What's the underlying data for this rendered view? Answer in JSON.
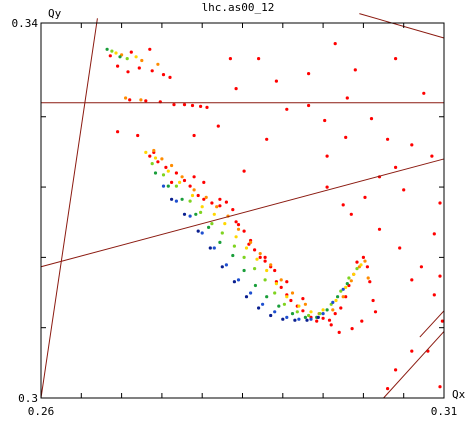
{
  "chart_data": {
    "type": "scatter",
    "title": "lhc.as00_12",
    "xlabel": "Qx",
    "ylabel": "Qy",
    "xlim": [
      0.26,
      0.31
    ],
    "ylim": [
      0.3,
      0.34
    ],
    "x_tick_labels": [
      {
        "value": 0.26,
        "label": "0.26"
      },
      {
        "value": 0.31,
        "label": "0.31"
      }
    ],
    "y_tick_labels": [
      {
        "value": 0.3,
        "label": "0.3"
      },
      {
        "value": 0.34,
        "label": "0.34"
      }
    ],
    "x_minor_ticks": [
      0.265,
      0.27,
      0.275,
      0.28,
      0.285,
      0.29,
      0.295,
      0.3,
      0.305
    ],
    "y_minor_ticks": [
      0.3075,
      0.315,
      0.3225,
      0.33
    ],
    "resonance_lines": [
      {
        "x": [
          0.26,
          0.267
        ],
        "y": [
          0.3,
          0.3405
        ]
      },
      {
        "x": [
          0.26,
          0.31
        ],
        "y": [
          0.3315,
          0.3315
        ]
      },
      {
        "x": [
          0.26,
          0.31
        ],
        "y": [
          0.314,
          0.3255
        ]
      },
      {
        "x": [
          0.2995,
          0.31
        ],
        "y": [
          0.341,
          0.3384
        ]
      },
      {
        "x": [
          0.3025,
          0.31
        ],
        "y": [
          0.3,
          0.3071
        ]
      },
      {
        "x": [
          0.307,
          0.31
        ],
        "y": [
          0.3065,
          0.3093
        ]
      }
    ],
    "point_groups": [
      {
        "color": "#ff0000",
        "points": [
          [
            0.2686,
            0.3365
          ],
          [
            0.2712,
            0.3369
          ],
          [
            0.2735,
            0.3372
          ],
          [
            0.2695,
            0.3354
          ],
          [
            0.2722,
            0.3352
          ],
          [
            0.2708,
            0.3348
          ],
          [
            0.2738,
            0.3349
          ],
          [
            0.2752,
            0.3345
          ],
          [
            0.276,
            0.3342
          ],
          [
            0.271,
            0.3318
          ],
          [
            0.273,
            0.3317
          ],
          [
            0.2748,
            0.3316
          ],
          [
            0.2765,
            0.3313
          ],
          [
            0.2778,
            0.3313
          ],
          [
            0.2788,
            0.3312
          ],
          [
            0.2798,
            0.3311
          ],
          [
            0.2806,
            0.331
          ],
          [
            0.2735,
            0.3258
          ],
          [
            0.2745,
            0.3252
          ],
          [
            0.2755,
            0.3246
          ],
          [
            0.2768,
            0.324
          ],
          [
            0.2778,
            0.3232
          ],
          [
            0.2785,
            0.3226
          ],
          [
            0.2795,
            0.3216
          ],
          [
            0.2802,
            0.3212
          ],
          [
            0.2812,
            0.3208
          ],
          [
            0.2822,
            0.3205
          ],
          [
            0.283,
            0.3209
          ],
          [
            0.2838,
            0.3201
          ],
          [
            0.2845,
            0.3185
          ],
          [
            0.2852,
            0.3178
          ],
          [
            0.2858,
            0.3164
          ],
          [
            0.2865,
            0.3158
          ],
          [
            0.2872,
            0.315
          ],
          [
            0.2878,
            0.3146
          ],
          [
            0.2885,
            0.314
          ],
          [
            0.289,
            0.3136
          ],
          [
            0.2892,
            0.3124
          ],
          [
            0.2898,
            0.3118
          ],
          [
            0.2905,
            0.311
          ],
          [
            0.291,
            0.3104
          ],
          [
            0.2918,
            0.3098
          ],
          [
            0.2925,
            0.3093
          ],
          [
            0.2935,
            0.3086
          ],
          [
            0.2942,
            0.3082
          ],
          [
            0.295,
            0.3085
          ],
          [
            0.2958,
            0.3083
          ],
          [
            0.2965,
            0.309
          ],
          [
            0.2972,
            0.3096
          ],
          [
            0.2978,
            0.3108
          ],
          [
            0.2982,
            0.312
          ],
          [
            0.2988,
            0.3132
          ],
          [
            0.2992,
            0.3145
          ],
          [
            0.3,
            0.315
          ],
          [
            0.3005,
            0.314
          ],
          [
            0.3008,
            0.3124
          ],
          [
            0.3012,
            0.3104
          ],
          [
            0.3015,
            0.3092
          ],
          [
            0.2998,
            0.3082
          ],
          [
            0.2986,
            0.3074
          ],
          [
            0.297,
            0.307
          ],
          [
            0.296,
            0.3078
          ],
          [
            0.2925,
            0.3106
          ],
          [
            0.2905,
            0.3124
          ],
          [
            0.2878,
            0.315
          ],
          [
            0.286,
            0.3168
          ],
          [
            0.2842,
            0.3188
          ],
          [
            0.2822,
            0.3212
          ],
          [
            0.2802,
            0.323
          ],
          [
            0.279,
            0.3236
          ],
          [
            0.2932,
            0.3346
          ],
          [
            0.2965,
            0.3378
          ],
          [
            0.299,
            0.335
          ],
          [
            0.304,
            0.3362
          ],
          [
            0.3075,
            0.3325
          ],
          [
            0.306,
            0.327
          ],
          [
            0.3085,
            0.3258
          ],
          [
            0.305,
            0.3222
          ],
          [
            0.3095,
            0.3208
          ],
          [
            0.2955,
            0.3258
          ],
          [
            0.2978,
            0.3278
          ],
          [
            0.3088,
            0.3175
          ],
          [
            0.3072,
            0.314
          ],
          [
            0.3095,
            0.313
          ],
          [
            0.2905,
            0.3308
          ],
          [
            0.288,
            0.3276
          ],
          [
            0.2852,
            0.3242
          ],
          [
            0.2955,
            0.3225
          ],
          [
            0.2985,
            0.3196
          ],
          [
            0.302,
            0.318
          ],
          [
            0.3045,
            0.316
          ],
          [
            0.306,
            0.3126
          ],
          [
            0.3088,
            0.311
          ],
          [
            0.3098,
            0.3082
          ],
          [
            0.306,
            0.305
          ],
          [
            0.304,
            0.303
          ],
          [
            0.303,
            0.301
          ],
          [
            0.308,
            0.305
          ],
          [
            0.3095,
            0.3012
          ],
          [
            0.2695,
            0.3284
          ],
          [
            0.272,
            0.328
          ],
          [
            0.2762,
            0.323
          ],
          [
            0.274,
            0.3262
          ],
          [
            0.279,
            0.328
          ],
          [
            0.282,
            0.329
          ],
          [
            0.2842,
            0.333
          ],
          [
            0.287,
            0.3362
          ],
          [
            0.2835,
            0.3362
          ],
          [
            0.2892,
            0.3338
          ],
          [
            0.2932,
            0.3312
          ],
          [
            0.2952,
            0.3296
          ],
          [
            0.298,
            0.332
          ],
          [
            0.301,
            0.3298
          ],
          [
            0.303,
            0.3276
          ],
          [
            0.304,
            0.3246
          ],
          [
            0.302,
            0.3236
          ],
          [
            0.3002,
            0.3214
          ],
          [
            0.2975,
            0.3206
          ]
        ]
      },
      {
        "color": "#ff8c00",
        "points": [
          [
            0.27,
            0.3366
          ],
          [
            0.2725,
            0.336
          ],
          [
            0.2745,
            0.3356
          ],
          [
            0.2705,
            0.332
          ],
          [
            0.2724,
            0.3318
          ],
          [
            0.274,
            0.3264
          ],
          [
            0.275,
            0.3255
          ],
          [
            0.2762,
            0.3248
          ],
          [
            0.2775,
            0.3236
          ],
          [
            0.279,
            0.3222
          ],
          [
            0.2805,
            0.3214
          ],
          [
            0.2818,
            0.3204
          ],
          [
            0.2832,
            0.3194
          ],
          [
            0.2845,
            0.318
          ],
          [
            0.286,
            0.3166
          ],
          [
            0.2872,
            0.3154
          ],
          [
            0.2885,
            0.3142
          ],
          [
            0.2898,
            0.3126
          ],
          [
            0.2912,
            0.3112
          ],
          [
            0.2928,
            0.31
          ],
          [
            0.2945,
            0.309
          ],
          [
            0.2962,
            0.3094
          ],
          [
            0.2975,
            0.3108
          ],
          [
            0.2985,
            0.3125
          ],
          [
            0.2995,
            0.314
          ],
          [
            0.3002,
            0.3146
          ],
          [
            0.3006,
            0.3128
          ]
        ]
      },
      {
        "color": "#ffd700",
        "points": [
          [
            0.2693,
            0.3368
          ],
          [
            0.2718,
            0.3364
          ],
          [
            0.273,
            0.3262
          ],
          [
            0.2742,
            0.3256
          ],
          [
            0.2758,
            0.3242
          ],
          [
            0.2772,
            0.323
          ],
          [
            0.2788,
            0.3216
          ],
          [
            0.28,
            0.3204
          ],
          [
            0.2815,
            0.3196
          ],
          [
            0.2828,
            0.3186
          ],
          [
            0.2842,
            0.3172
          ],
          [
            0.2855,
            0.316
          ],
          [
            0.2868,
            0.3148
          ],
          [
            0.288,
            0.3136
          ],
          [
            0.2892,
            0.3122
          ],
          [
            0.2905,
            0.3108
          ],
          [
            0.292,
            0.3098
          ],
          [
            0.2935,
            0.3092
          ],
          [
            0.295,
            0.3094
          ],
          [
            0.2966,
            0.3104
          ],
          [
            0.2978,
            0.3118
          ],
          [
            0.2988,
            0.3132
          ],
          [
            0.2997,
            0.3142
          ]
        ]
      },
      {
        "color": "#7fd320",
        "points": [
          [
            0.2688,
            0.337
          ],
          [
            0.2707,
            0.3362
          ],
          [
            0.2738,
            0.325
          ],
          [
            0.2752,
            0.3238
          ],
          [
            0.2768,
            0.3226
          ],
          [
            0.2785,
            0.321
          ],
          [
            0.2798,
            0.3198
          ],
          [
            0.2812,
            0.3186
          ],
          [
            0.2825,
            0.3176
          ],
          [
            0.284,
            0.3162
          ],
          [
            0.2852,
            0.315
          ],
          [
            0.2865,
            0.3138
          ],
          [
            0.2878,
            0.3126
          ],
          [
            0.289,
            0.3112
          ],
          [
            0.2902,
            0.31
          ],
          [
            0.2918,
            0.3092
          ],
          [
            0.2932,
            0.3088
          ],
          [
            0.2946,
            0.309
          ],
          [
            0.296,
            0.31
          ],
          [
            0.2972,
            0.3114
          ],
          [
            0.2982,
            0.3128
          ],
          [
            0.2992,
            0.3138
          ]
        ]
      },
      {
        "color": "#1a9e3a",
        "points": [
          [
            0.2682,
            0.3372
          ],
          [
            0.2698,
            0.3364
          ],
          [
            0.2742,
            0.324
          ],
          [
            0.2758,
            0.3226
          ],
          [
            0.2775,
            0.3212
          ],
          [
            0.2792,
            0.3196
          ],
          [
            0.2808,
            0.3182
          ],
          [
            0.2822,
            0.3166
          ],
          [
            0.2838,
            0.3152
          ],
          [
            0.2852,
            0.3136
          ],
          [
            0.2866,
            0.312
          ],
          [
            0.288,
            0.3108
          ],
          [
            0.2895,
            0.3098
          ],
          [
            0.2912,
            0.309
          ],
          [
            0.2928,
            0.3086
          ],
          [
            0.2942,
            0.3086
          ],
          [
            0.2955,
            0.3094
          ],
          [
            0.2968,
            0.3108
          ],
          [
            0.298,
            0.3122
          ]
        ]
      },
      {
        "color": "#1e4fd0",
        "points": [
          [
            0.2752,
            0.3226
          ],
          [
            0.2768,
            0.321
          ],
          [
            0.2785,
            0.3194
          ],
          [
            0.28,
            0.3176
          ],
          [
            0.2815,
            0.316
          ],
          [
            0.283,
            0.3142
          ],
          [
            0.2845,
            0.3126
          ],
          [
            0.286,
            0.3112
          ],
          [
            0.2875,
            0.31
          ],
          [
            0.289,
            0.3092
          ],
          [
            0.2905,
            0.3086
          ],
          [
            0.292,
            0.3084
          ],
          [
            0.2935,
            0.3084
          ],
          [
            0.295,
            0.309
          ],
          [
            0.2962,
            0.3102
          ],
          [
            0.2975,
            0.3116
          ]
        ]
      },
      {
        "color": "#0a1f8f",
        "points": [
          [
            0.2762,
            0.3212
          ],
          [
            0.2778,
            0.3196
          ],
          [
            0.2795,
            0.3178
          ],
          [
            0.281,
            0.316
          ],
          [
            0.2825,
            0.314
          ],
          [
            0.284,
            0.3124
          ],
          [
            0.2855,
            0.3108
          ],
          [
            0.287,
            0.3096
          ],
          [
            0.2885,
            0.3088
          ],
          [
            0.29,
            0.3084
          ],
          [
            0.2915,
            0.3083
          ],
          [
            0.293,
            0.3083
          ],
          [
            0.2944,
            0.3086
          ]
        ]
      }
    ]
  }
}
